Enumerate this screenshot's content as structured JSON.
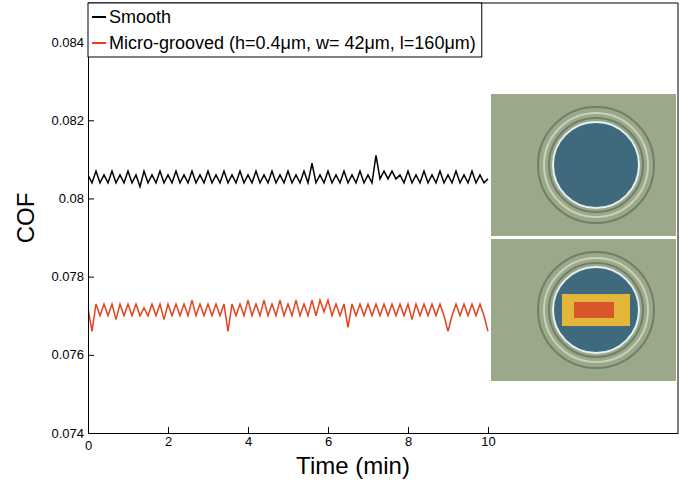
{
  "chart_data": {
    "type": "line",
    "x_label": "Time (min)",
    "y_label": "COF",
    "xlim": [
      0,
      14.75
    ],
    "xticks": [
      0,
      2,
      4,
      6,
      8,
      10
    ],
    "ylim": [
      0.074,
      0.085
    ],
    "yticks": [
      0.074,
      0.076,
      0.078,
      0.08,
      0.082,
      0.084
    ],
    "grid": false,
    "legend": "upper left",
    "x": [
      0,
      0.1,
      0.2,
      0.3,
      0.4,
      0.5,
      0.6,
      0.7,
      0.8,
      0.9,
      1,
      1.1,
      1.2,
      1.3,
      1.4,
      1.5,
      1.6,
      1.7,
      1.8,
      1.9,
      2,
      2.1,
      2.2,
      2.3,
      2.4,
      2.5,
      2.6,
      2.7,
      2.8,
      2.9,
      3,
      3.1,
      3.2,
      3.3,
      3.4,
      3.5,
      3.6,
      3.7,
      3.8,
      3.9,
      4,
      4.1,
      4.2,
      4.3,
      4.4,
      4.5,
      4.6,
      4.7,
      4.8,
      4.9,
      5,
      5.1,
      5.2,
      5.3,
      5.4,
      5.5,
      5.6,
      5.7,
      5.8,
      5.9,
      6,
      6.1,
      6.2,
      6.3,
      6.4,
      6.5,
      6.6,
      6.7,
      6.8,
      6.9,
      7,
      7.1,
      7.2,
      7.3,
      7.4,
      7.5,
      7.6,
      7.7,
      7.8,
      7.9,
      8,
      8.1,
      8.2,
      8.3,
      8.4,
      8.5,
      8.6,
      8.7,
      8.8,
      8.9,
      9,
      9.1,
      9.2,
      9.3,
      9.4,
      9.5,
      9.6,
      9.7,
      9.8,
      9.9,
      10
    ],
    "series": [
      {
        "name": "Smooth",
        "color": "#000000",
        "values": [
          0.0806,
          0.0804,
          0.0807,
          0.0804,
          0.0806,
          0.0804,
          0.0807,
          0.0804,
          0.0806,
          0.0804,
          0.0807,
          0.0804,
          0.0806,
          0.0803,
          0.0807,
          0.0804,
          0.0806,
          0.0804,
          0.0807,
          0.0804,
          0.0806,
          0.0804,
          0.0807,
          0.0804,
          0.0806,
          0.0804,
          0.0807,
          0.0804,
          0.0806,
          0.0804,
          0.0807,
          0.0804,
          0.0806,
          0.0804,
          0.0807,
          0.0804,
          0.0806,
          0.0804,
          0.0807,
          0.0804,
          0.0806,
          0.0804,
          0.0807,
          0.0804,
          0.0806,
          0.0804,
          0.0807,
          0.0804,
          0.0806,
          0.0804,
          0.0807,
          0.0804,
          0.0806,
          0.0804,
          0.0807,
          0.0804,
          0.0809,
          0.0804,
          0.0806,
          0.0804,
          0.0807,
          0.0804,
          0.0806,
          0.0804,
          0.0807,
          0.0804,
          0.0806,
          0.0804,
          0.0807,
          0.0804,
          0.0806,
          0.0804,
          0.0811,
          0.0805,
          0.0807,
          0.0805,
          0.0807,
          0.0805,
          0.0806,
          0.0804,
          0.0807,
          0.0804,
          0.0806,
          0.0804,
          0.0807,
          0.0804,
          0.0806,
          0.0804,
          0.0807,
          0.0804,
          0.0806,
          0.0804,
          0.0807,
          0.0804,
          0.0806,
          0.0804,
          0.0807,
          0.0804,
          0.0806,
          0.0804,
          0.0805
        ]
      },
      {
        "name": "Micro-grooved (h=0.4μm, w= 42μm, l=160μm)",
        "color": "#e8401c",
        "values": [
          0.0772,
          0.0766,
          0.0773,
          0.077,
          0.0773,
          0.077,
          0.0773,
          0.0769,
          0.0773,
          0.077,
          0.0773,
          0.077,
          0.0773,
          0.077,
          0.0772,
          0.077,
          0.0773,
          0.077,
          0.0773,
          0.0769,
          0.0773,
          0.077,
          0.0773,
          0.077,
          0.0773,
          0.077,
          0.0774,
          0.077,
          0.0773,
          0.077,
          0.0773,
          0.077,
          0.0773,
          0.077,
          0.0773,
          0.0766,
          0.0773,
          0.077,
          0.0773,
          0.077,
          0.0774,
          0.077,
          0.0773,
          0.077,
          0.0774,
          0.077,
          0.0773,
          0.077,
          0.0774,
          0.077,
          0.0773,
          0.077,
          0.0774,
          0.077,
          0.0773,
          0.077,
          0.0774,
          0.077,
          0.0774,
          0.0771,
          0.0774,
          0.077,
          0.0773,
          0.077,
          0.0773,
          0.0767,
          0.0773,
          0.077,
          0.0773,
          0.077,
          0.0773,
          0.077,
          0.0773,
          0.077,
          0.0773,
          0.077,
          0.0773,
          0.077,
          0.0773,
          0.077,
          0.0773,
          0.0769,
          0.0773,
          0.077,
          0.0773,
          0.077,
          0.0773,
          0.077,
          0.0773,
          0.077,
          0.0766,
          0.077,
          0.0773,
          0.077,
          0.0773,
          0.077,
          0.0773,
          0.077,
          0.0773,
          0.077,
          0.0766
        ]
      }
    ]
  }
}
